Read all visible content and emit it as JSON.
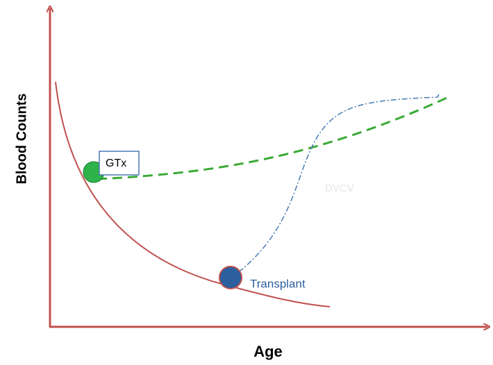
{
  "axes": {
    "y_label": "Blood Counts",
    "x_label": "Age"
  },
  "annotations": {
    "gtx": "GTx",
    "transplant": "Transplant",
    "dvcv": "DVCV"
  }
}
